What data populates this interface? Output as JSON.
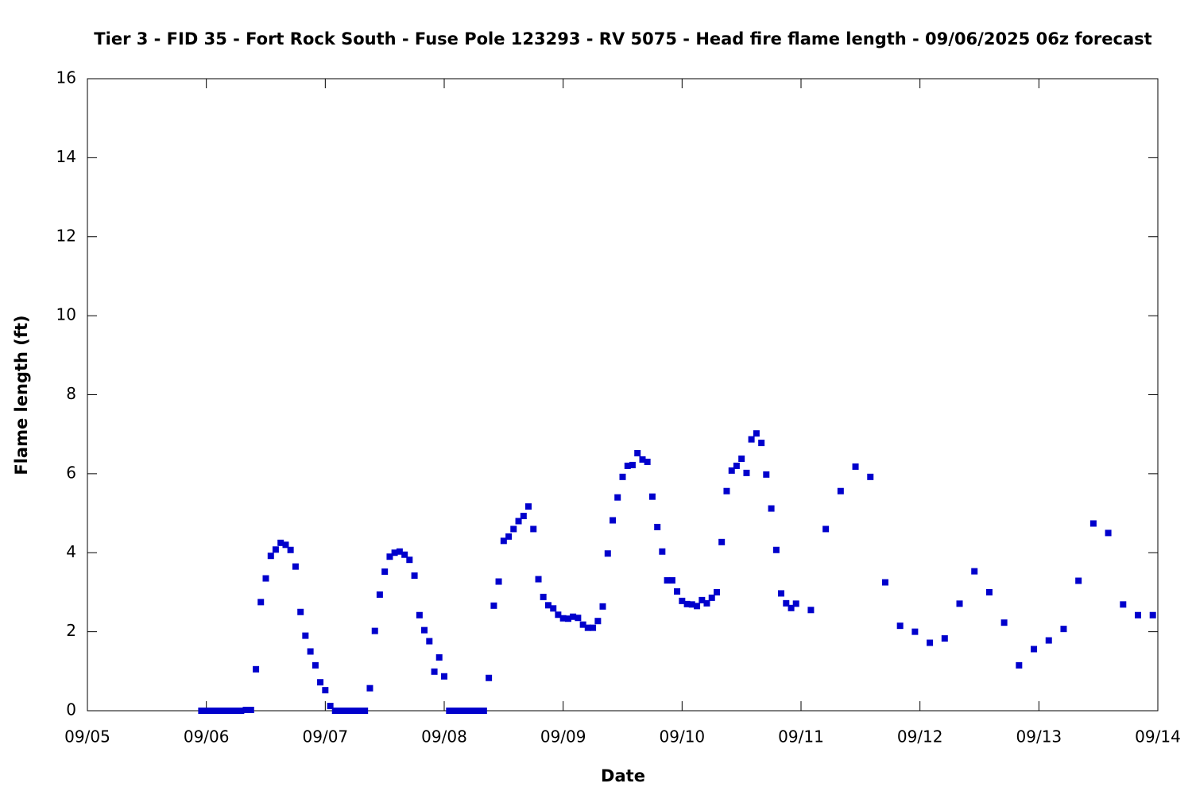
{
  "chart_data": {
    "type": "scatter",
    "title": "Tier 3 - FID 35 - Fort Rock South - Fuse Pole 123293 - RV 5075 - Head fire flame length - 09/06/2025 06z forecast",
    "xlabel": "Date",
    "ylabel": "Flame length (ft)",
    "xlim": [
      5,
      14
    ],
    "ylim": [
      0,
      16
    ],
    "xticks": [
      {
        "value": 5,
        "label": "09/05"
      },
      {
        "value": 6,
        "label": "09/06"
      },
      {
        "value": 7,
        "label": "09/07"
      },
      {
        "value": 8,
        "label": "09/08"
      },
      {
        "value": 9,
        "label": "09/09"
      },
      {
        "value": 10,
        "label": "09/10"
      },
      {
        "value": 11,
        "label": "09/11"
      },
      {
        "value": 12,
        "label": "09/12"
      },
      {
        "value": 13,
        "label": "09/13"
      },
      {
        "value": 14,
        "label": "09/14"
      }
    ],
    "yticks": [
      0,
      2,
      4,
      6,
      8,
      10,
      12,
      14,
      16
    ],
    "grid": false,
    "series": [
      {
        "color": "#0000cc",
        "x": [
          5.958,
          6,
          6.042,
          6.083,
          6.125,
          6.167,
          6.208,
          6.25,
          6.292,
          6.333,
          6.375,
          6.417,
          6.458,
          6.5,
          6.542,
          6.583,
          6.625,
          6.667,
          6.708,
          6.75,
          6.792,
          6.833,
          6.875,
          6.917,
          6.958,
          7,
          7.042,
          7.083,
          7.125,
          7.167,
          7.208,
          7.25,
          7.292,
          7.333,
          7.375,
          7.417,
          7.458,
          7.5,
          7.542,
          7.583,
          7.625,
          7.667,
          7.708,
          7.75,
          7.792,
          7.833,
          7.875,
          7.917,
          7.958,
          8,
          8.042,
          8.083,
          8.125,
          8.167,
          8.208,
          8.25,
          8.292,
          8.333,
          8.375,
          8.417,
          8.458,
          8.5,
          8.542,
          8.583,
          8.625,
          8.667,
          8.708,
          8.75,
          8.792,
          8.833,
          8.875,
          8.917,
          8.958,
          9,
          9.042,
          9.083,
          9.125,
          9.167,
          9.208,
          9.25,
          9.292,
          9.333,
          9.375,
          9.417,
          9.458,
          9.5,
          9.542,
          9.583,
          9.625,
          9.667,
          9.708,
          9.75,
          9.792,
          9.833,
          9.875,
          9.917,
          9.958,
          10,
          10.042,
          10.083,
          10.125,
          10.167,
          10.208,
          10.25,
          10.292,
          10.333,
          10.375,
          10.417,
          10.458,
          10.5,
          10.542,
          10.583,
          10.625,
          10.667,
          10.708,
          10.75,
          10.792,
          10.833,
          10.875,
          10.917,
          10.958,
          11.083,
          11.208,
          11.333,
          11.458,
          11.583,
          11.708,
          11.833,
          11.958,
          12.083,
          12.208,
          12.333,
          12.458,
          12.583,
          12.708,
          12.833,
          12.958,
          13.083,
          13.208,
          13.333,
          13.458,
          13.583,
          13.708,
          13.833,
          13.958
        ],
        "values": [
          0,
          0,
          0,
          0,
          0,
          0,
          0,
          0,
          0,
          0.02,
          0.02,
          1.05,
          2.75,
          3.35,
          3.92,
          4.08,
          4.25,
          4.2,
          4.07,
          3.65,
          2.5,
          1.9,
          1.5,
          1.15,
          0.72,
          0.52,
          0.12,
          0,
          0,
          0,
          0,
          0,
          0,
          0,
          0.57,
          2.02,
          2.94,
          3.52,
          3.9,
          4.0,
          4.03,
          3.95,
          3.82,
          3.42,
          2.42,
          2.04,
          1.76,
          0.99,
          1.35,
          0.87,
          0,
          0,
          0,
          0,
          0,
          0,
          0,
          0,
          0.83,
          2.66,
          3.27,
          4.3,
          4.41,
          4.6,
          4.8,
          4.93,
          5.17,
          4.6,
          3.33,
          2.88,
          2.67,
          2.59,
          2.43,
          2.34,
          2.33,
          2.38,
          2.35,
          2.18,
          2.1,
          2.1,
          2.27,
          2.64,
          3.98,
          4.82,
          5.4,
          5.92,
          6.2,
          6.22,
          6.52,
          6.36,
          6.3,
          5.42,
          4.65,
          4.03,
          3.3,
          3.3,
          3.02,
          2.78,
          2.7,
          2.69,
          2.65,
          2.8,
          2.72,
          2.86,
          3.0,
          4.27,
          5.56,
          6.08,
          6.2,
          6.38,
          6.02,
          6.87,
          7.02,
          6.78,
          5.98,
          5.12,
          4.07,
          2.97,
          2.72,
          2.6,
          2.71,
          2.55,
          4.6,
          5.56,
          6.18,
          5.92,
          3.25,
          2.15,
          2.0,
          1.72,
          1.83,
          2.71,
          3.53,
          3.0,
          2.23,
          1.15,
          1.56,
          1.78,
          2.07,
          3.29,
          4.74,
          4.5,
          2.69,
          2.42,
          2.42
        ]
      }
    ]
  }
}
